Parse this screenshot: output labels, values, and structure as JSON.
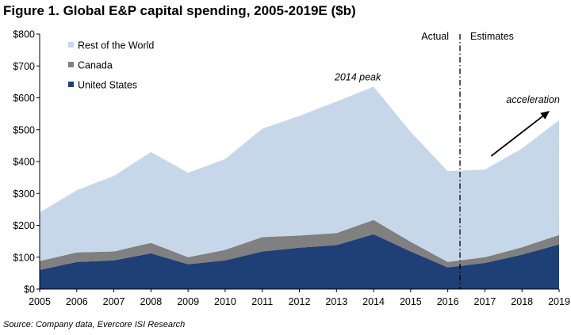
{
  "chart_data": {
    "type": "area",
    "stacked": true,
    "title": "Figure 1. Global E&P capital spending, 2005-2019E ($b)",
    "source": "Source: Company data, Evercore ISI Research",
    "x": [
      "2005",
      "2006",
      "2007",
      "2008",
      "2009",
      "2010",
      "2011",
      "2012",
      "2013",
      "2014",
      "2015",
      "2016",
      "2017",
      "2018",
      "2019"
    ],
    "series": [
      {
        "name": "United States",
        "color": "#1f3f77",
        "values": [
          60,
          85,
          90,
          112,
          78,
          90,
          118,
          130,
          138,
          172,
          118,
          68,
          82,
          108,
          140
        ]
      },
      {
        "name": "Canada",
        "color": "#808080",
        "values": [
          28,
          30,
          28,
          33,
          22,
          33,
          45,
          38,
          38,
          45,
          30,
          17,
          18,
          23,
          30
        ]
      },
      {
        "name": "Rest of the World",
        "color": "#c7d7ea",
        "values": [
          152,
          195,
          237,
          285,
          265,
          285,
          340,
          375,
          412,
          418,
          345,
          285,
          275,
          310,
          360
        ]
      }
    ],
    "legend_order": [
      "Rest of the World",
      "Canada",
      "United States"
    ],
    "ylim": [
      0,
      800
    ],
    "yticks": [
      0,
      100,
      200,
      300,
      400,
      500,
      600,
      700,
      800
    ],
    "ytick_labels": [
      "$0",
      "$100",
      "$200",
      "$300",
      "$400",
      "$500",
      "$600",
      "$700",
      "$800"
    ],
    "divider_after": "2016",
    "annotations": {
      "actual": "Actual",
      "estimates": "Estimates",
      "peak": "2014 peak",
      "acceleration": "acceleration"
    }
  }
}
